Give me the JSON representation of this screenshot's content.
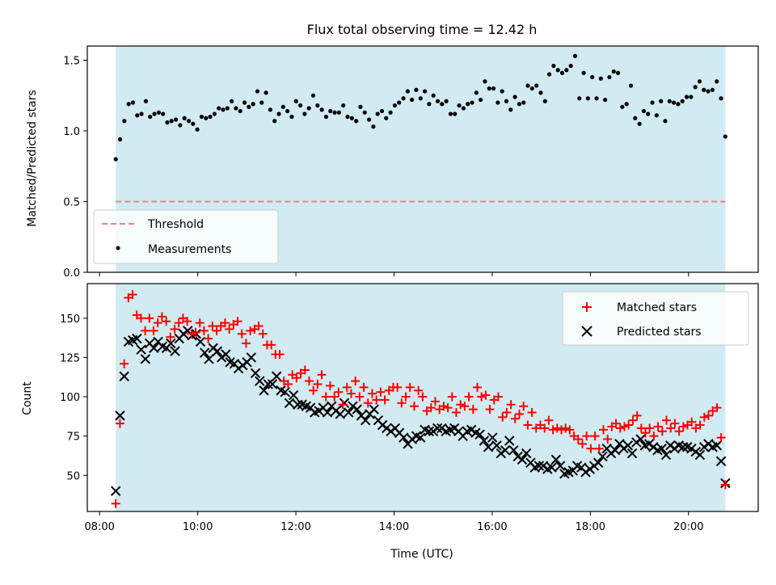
{
  "chart_data": [
    {
      "type": "scatter",
      "title": "Flux total observing time = 12.42 h",
      "xlabel": "",
      "ylabel": "Matched/Predicted stars",
      "ylim": [
        0,
        1.6
      ],
      "xlim_hours": [
        7.75,
        21.42
      ],
      "yticks": [
        "0.0",
        "0.5",
        "1.0",
        "1.5"
      ],
      "shaded_span_hours": [
        8.33,
        20.75
      ],
      "shade_color": "#add8e6",
      "legend_position": "lower-left",
      "threshold": {
        "name": "Threshold",
        "value": 0.5,
        "x_hours": [
          8.33,
          20.75
        ],
        "color": "#f08080"
      },
      "series": [
        {
          "name": "Measurements",
          "color": "#000000",
          "marker": "dot",
          "values": [
            0.8,
            0.94,
            1.07,
            1.19,
            1.2,
            1.11,
            1.12,
            1.21,
            1.1,
            1.12,
            1.13,
            1.12,
            1.06,
            1.07,
            1.08,
            1.04,
            1.09,
            1.07,
            1.05,
            1.01,
            1.1,
            1.09,
            1.1,
            1.12,
            1.16,
            1.15,
            1.16,
            1.21,
            1.16,
            1.14,
            1.2,
            1.17,
            1.19,
            1.28,
            1.2,
            1.27,
            1.15,
            1.07,
            1.12,
            1.17,
            1.14,
            1.1,
            1.21,
            1.18,
            1.12,
            1.16,
            1.25,
            1.18,
            1.15,
            1.1,
            1.14,
            1.13,
            1.13,
            1.18,
            1.1,
            1.09,
            1.07,
            1.17,
            1.13,
            1.08,
            1.03,
            1.12,
            1.14,
            1.09,
            1.13,
            1.18,
            1.2,
            1.23,
            1.28,
            1.22,
            1.29,
            1.23,
            1.28,
            1.19,
            1.25,
            1.21,
            1.19,
            1.21,
            1.12,
            1.12,
            1.18,
            1.16,
            1.19,
            1.2,
            1.27,
            1.22,
            1.35,
            1.3,
            1.3,
            1.2,
            1.28,
            1.21,
            1.15,
            1.24,
            1.19,
            1.2,
            1.32,
            1.3,
            1.32,
            1.27,
            1.21,
            1.4,
            1.46,
            1.43,
            1.41,
            1.43,
            1.46,
            1.53,
            1.23,
            1.41,
            1.23,
            1.38,
            1.23,
            1.37,
            1.22,
            1.38,
            1.42,
            1.41,
            1.17,
            1.19,
            1.32,
            1.09,
            1.05,
            1.14,
            1.12,
            1.2,
            1.11,
            1.21,
            1.07,
            1.21,
            1.2,
            1.19,
            1.21,
            1.24,
            1.24,
            1.31,
            1.35,
            1.29,
            1.28,
            1.29,
            1.35,
            1.23,
            0.96
          ]
        }
      ]
    },
    {
      "type": "scatter",
      "title": "",
      "xlabel": "Time (UTC)",
      "ylabel": "Count",
      "ylim": [
        27,
        172
      ],
      "xlim_hours": [
        7.75,
        21.42
      ],
      "yticks": [
        "50",
        "75",
        "100",
        "125",
        "150"
      ],
      "xticks": [
        "08:00",
        "10:00",
        "12:00",
        "14:00",
        "16:00",
        "18:00",
        "20:00"
      ],
      "shaded_span_hours": [
        8.33,
        20.75
      ],
      "legend_position": "upper-right",
      "series": [
        {
          "name": "Matched stars",
          "color": "#ff0000",
          "marker": "plus",
          "values": [
            32,
            83,
            121,
            163,
            165,
            152,
            150,
            142,
            150,
            142,
            147,
            151,
            148,
            138,
            143,
            147,
            150,
            148,
            140,
            141,
            147,
            142,
            137,
            145,
            142,
            145,
            147,
            143,
            146,
            148,
            140,
            134,
            142,
            143,
            145,
            140,
            133,
            133,
            127,
            127,
            110,
            108,
            114,
            112,
            115,
            117,
            110,
            104,
            108,
            114,
            100,
            107,
            100,
            103,
            95,
            106,
            102,
            110,
            100,
            106,
            96,
            102,
            98,
            103,
            98,
            104,
            106,
            106,
            96,
            100,
            106,
            94,
            104,
            100,
            91,
            93,
            97,
            92,
            94,
            93,
            100,
            90,
            95,
            94,
            100,
            92,
            106,
            100,
            101,
            92,
            98,
            100,
            87,
            90,
            95,
            86,
            89,
            94,
            82,
            90,
            80,
            82,
            80,
            85,
            79,
            80,
            79,
            80,
            79,
            75,
            73,
            70,
            75,
            67,
            75,
            67,
            79,
            73,
            81,
            83,
            80,
            81,
            82,
            85,
            88,
            80,
            77,
            80,
            75,
            81,
            78,
            85,
            80,
            83,
            78,
            81,
            82,
            84,
            80,
            82,
            87,
            88,
            91,
            93,
            74,
            44
          ]
        },
        {
          "name": "Predicted stars",
          "color": "#000000",
          "marker": "x",
          "values": [
            40,
            88,
            113,
            135,
            136,
            137,
            130,
            124,
            134,
            131,
            135,
            132,
            131,
            134,
            129,
            137,
            140,
            142,
            139,
            140,
            135,
            128,
            124,
            131,
            129,
            125,
            127,
            122,
            121,
            118,
            120,
            122,
            125,
            115,
            110,
            104,
            108,
            108,
            113,
            104,
            103,
            96,
            101,
            95,
            95,
            94,
            93,
            90,
            91,
            93,
            90,
            94,
            91,
            89,
            96,
            90,
            94,
            92,
            88,
            85,
            89,
            92,
            85,
            82,
            80,
            78,
            80,
            77,
            74,
            70,
            73,
            75,
            74,
            79,
            78,
            78,
            80,
            80,
            78,
            79,
            80,
            78,
            75,
            78,
            79,
            77,
            76,
            72,
            68,
            74,
            69,
            64,
            66,
            72,
            66,
            62,
            60,
            64,
            58,
            55,
            56,
            56,
            54,
            55,
            60,
            56,
            51,
            52,
            53,
            56,
            55,
            52,
            54,
            56,
            58,
            62,
            67,
            64,
            66,
            70,
            67,
            69,
            64,
            71,
            73,
            69,
            70,
            68,
            66,
            67,
            63,
            69,
            67,
            69,
            68,
            68,
            67,
            65,
            63,
            68,
            70,
            68,
            69,
            59,
            45
          ]
        }
      ]
    }
  ]
}
